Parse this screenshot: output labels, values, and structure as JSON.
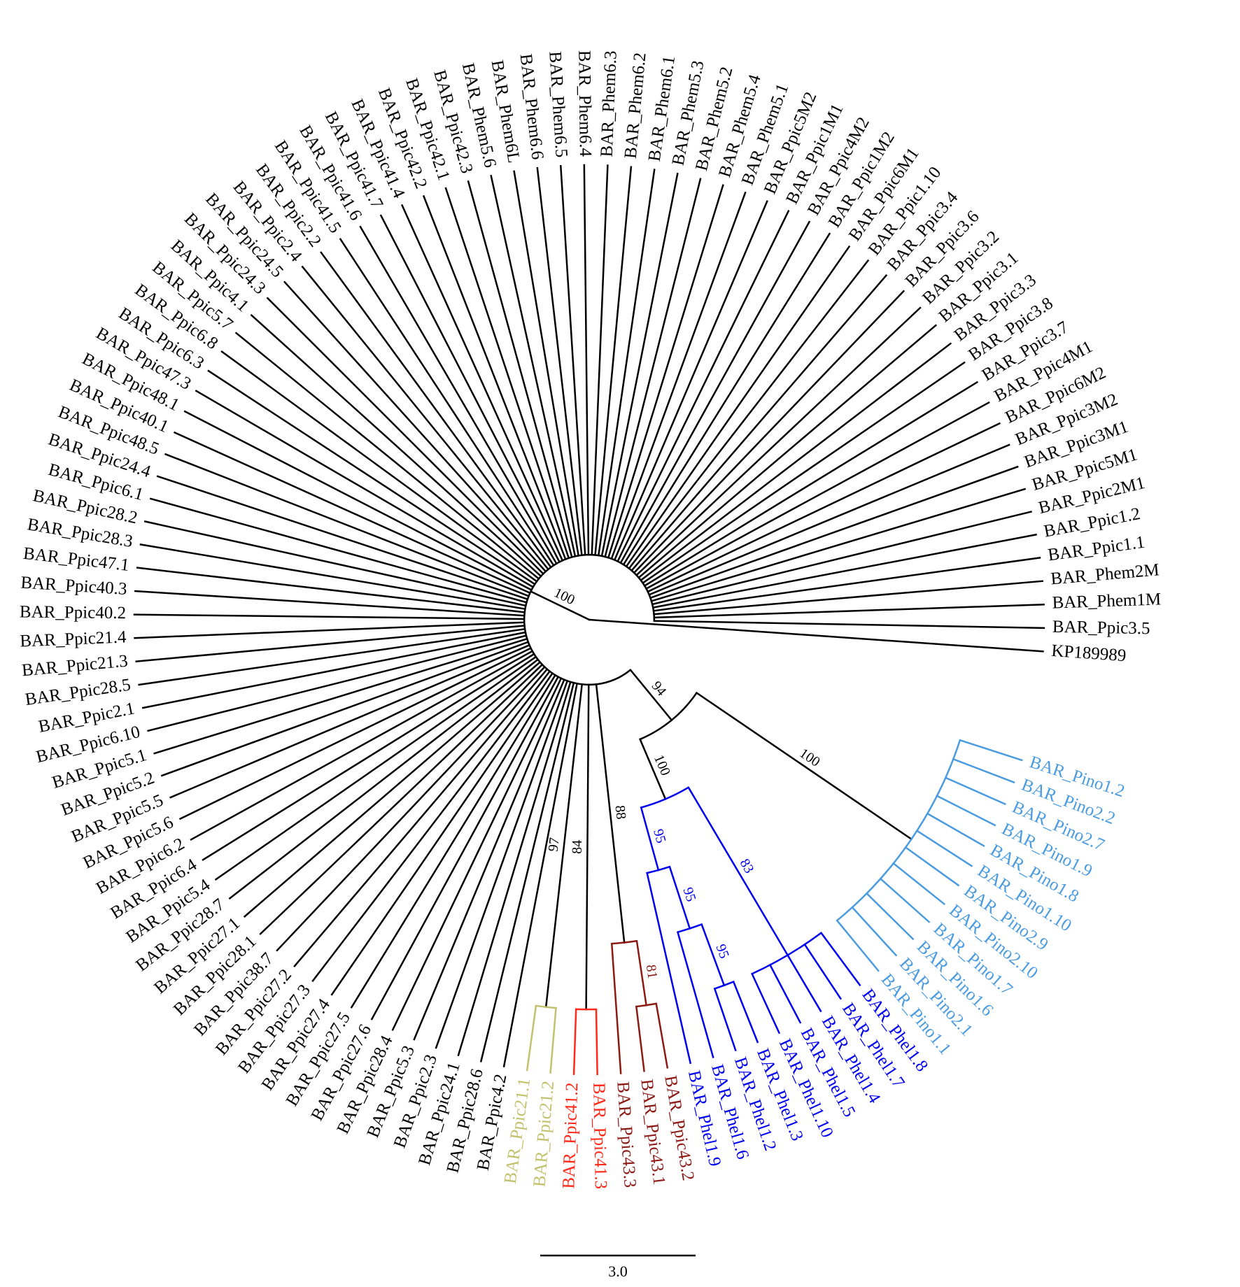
{
  "tree": {
    "color": "#000000",
    "children": [
      {
        "name": "KP189989",
        "color": "#000000"
      },
      {
        "support": 100,
        "color": "#000000",
        "children": [
          {
            "name": "BAR_Ppic3.5",
            "color": "#000000"
          },
          {
            "name": "BAR_Phem1M",
            "color": "#000000"
          },
          {
            "name": "BAR_Phem2M",
            "color": "#000000"
          },
          {
            "name": "BAR_Ppic1.1",
            "color": "#000000"
          },
          {
            "name": "BAR_Ppic1.2",
            "color": "#000000"
          },
          {
            "name": "BAR_Ppic2M1",
            "color": "#000000"
          },
          {
            "name": "BAR_Ppic5M1",
            "color": "#000000"
          },
          {
            "name": "BAR_Ppic3M1",
            "color": "#000000"
          },
          {
            "name": "BAR_Ppic3M2",
            "color": "#000000"
          },
          {
            "name": "BAR_Ppic6M2",
            "color": "#000000"
          },
          {
            "name": "BAR_Ppic4M1",
            "color": "#000000"
          },
          {
            "name": "BAR_Ppic3.7",
            "color": "#000000"
          },
          {
            "name": "BAR_Ppic3.8",
            "color": "#000000"
          },
          {
            "name": "BAR_Ppic3.3",
            "color": "#000000"
          },
          {
            "name": "BAR_Ppic3.1",
            "color": "#000000"
          },
          {
            "name": "BAR_Ppic3.2",
            "color": "#000000"
          },
          {
            "name": "BAR_Ppic3.6",
            "color": "#000000"
          },
          {
            "name": "BAR_Ppic3.4",
            "color": "#000000"
          },
          {
            "name": "BAR_Ppic1.10",
            "color": "#000000"
          },
          {
            "name": "BAR_Ppic6M1",
            "color": "#000000"
          },
          {
            "name": "BAR_Ppic1M2",
            "color": "#000000"
          },
          {
            "name": "BAR_Ppic4M2",
            "color": "#000000"
          },
          {
            "name": "BAR_Ppic1M1",
            "color": "#000000"
          },
          {
            "name": "BAR_Ppic5M2",
            "color": "#000000"
          },
          {
            "name": "BAR_Phem5.1",
            "color": "#000000"
          },
          {
            "name": "BAR_Phem5.4",
            "color": "#000000"
          },
          {
            "name": "BAR_Phem5.2",
            "color": "#000000"
          },
          {
            "name": "BAR_Phem5.3",
            "color": "#000000"
          },
          {
            "name": "BAR_Phem6.1",
            "color": "#000000"
          },
          {
            "name": "BAR_Phem6.2",
            "color": "#000000"
          },
          {
            "name": "BAR_Phem6.3",
            "color": "#000000"
          },
          {
            "name": "BAR_Phem6.4",
            "color": "#000000"
          },
          {
            "name": "BAR_Phem6.5",
            "color": "#000000"
          },
          {
            "name": "BAR_Phem6.6",
            "color": "#000000"
          },
          {
            "name": "BAR_Phem6L",
            "color": "#000000"
          },
          {
            "name": "BAR_Phem5.6",
            "color": "#000000"
          },
          {
            "name": "BAR_Ppic42.3",
            "color": "#000000"
          },
          {
            "name": "BAR_Ppic42.1",
            "color": "#000000"
          },
          {
            "name": "BAR_Ppic42.2",
            "color": "#000000"
          },
          {
            "name": "BAR_Ppic41.4",
            "color": "#000000"
          },
          {
            "name": "BAR_Ppic41.7",
            "color": "#000000"
          },
          {
            "name": "BAR_Ppic41.6",
            "color": "#000000"
          },
          {
            "name": "BAR_Ppic41.5",
            "color": "#000000"
          },
          {
            "name": "BAR_Ppic2.2",
            "color": "#000000"
          },
          {
            "name": "BAR_Ppic2.4",
            "color": "#000000"
          },
          {
            "name": "BAR_Ppic24.5",
            "color": "#000000"
          },
          {
            "name": "BAR_Ppic24.3",
            "color": "#000000"
          },
          {
            "name": "BAR_Ppic4.1",
            "color": "#000000"
          },
          {
            "name": "BAR_Ppic5.7",
            "color": "#000000"
          },
          {
            "name": "BAR_Ppic6.8",
            "color": "#000000"
          },
          {
            "name": "BAR_Ppic6.3",
            "color": "#000000"
          },
          {
            "name": "BAR_Ppic47.3",
            "color": "#000000"
          },
          {
            "name": "BAR_Ppic48.1",
            "color": "#000000"
          },
          {
            "name": "BAR_Ppic40.1",
            "color": "#000000"
          },
          {
            "name": "BAR_Ppic48.5",
            "color": "#000000"
          },
          {
            "name": "BAR_Ppic24.4",
            "color": "#000000"
          },
          {
            "name": "BAR_Ppic6.1",
            "color": "#000000"
          },
          {
            "name": "BAR_Ppic28.2",
            "color": "#000000"
          },
          {
            "name": "BAR_Ppic28.3",
            "color": "#000000"
          },
          {
            "name": "BAR_Ppic47.1",
            "color": "#000000"
          },
          {
            "name": "BAR_Ppic40.3",
            "color": "#000000"
          },
          {
            "name": "BAR_Ppic40.2",
            "color": "#000000"
          },
          {
            "name": "BAR_Ppic21.4",
            "color": "#000000"
          },
          {
            "name": "BAR_Ppic21.3",
            "color": "#000000"
          },
          {
            "name": "BAR_Ppic28.5",
            "color": "#000000"
          },
          {
            "name": "BAR_Ppic2.1",
            "color": "#000000"
          },
          {
            "name": "BAR_Ppic6.10",
            "color": "#000000"
          },
          {
            "name": "BAR_Ppic5.1",
            "color": "#000000"
          },
          {
            "name": "BAR_Ppic5.2",
            "color": "#000000"
          },
          {
            "name": "BAR_Ppic5.5",
            "color": "#000000"
          },
          {
            "name": "BAR_Ppic5.6",
            "color": "#000000"
          },
          {
            "name": "BAR_Ppic6.2",
            "color": "#000000"
          },
          {
            "name": "BAR_Ppic6.4",
            "color": "#000000"
          },
          {
            "name": "BAR_Ppic5.4",
            "color": "#000000"
          },
          {
            "name": "BAR_Ppic28.7",
            "color": "#000000"
          },
          {
            "name": "BAR_Ppic27.1",
            "color": "#000000"
          },
          {
            "name": "BAR_Ppic28.1",
            "color": "#000000"
          },
          {
            "name": "BAR_Ppic38.7",
            "color": "#000000"
          },
          {
            "name": "BAR_Ppic27.2",
            "color": "#000000"
          },
          {
            "name": "BAR_Ppic27.3",
            "color": "#000000"
          },
          {
            "name": "BAR_Ppic27.4",
            "color": "#000000"
          },
          {
            "name": "BAR_Ppic27.5",
            "color": "#000000"
          },
          {
            "name": "BAR_Ppic27.6",
            "color": "#000000"
          },
          {
            "name": "BAR_Ppic28.4",
            "color": "#000000"
          },
          {
            "name": "BAR_Ppic5.3",
            "color": "#000000"
          },
          {
            "name": "BAR_Ppic2.3",
            "color": "#000000"
          },
          {
            "name": "BAR_Ppic24.1",
            "color": "#000000"
          },
          {
            "name": "BAR_Ppic28.6",
            "color": "#000000"
          },
          {
            "name": "BAR_Ppic4.2",
            "color": "#000000"
          },
          {
            "support": 97,
            "color": "#c2c26e",
            "children": [
              {
                "name": "BAR_Ppic21.1",
                "color": "#c2c26e"
              },
              {
                "name": "BAR_Ppic21.2",
                "color": "#c2c26e"
              }
            ]
          },
          {
            "support": 84,
            "color": "#ff2a1a",
            "children": [
              {
                "name": "BAR_Ppic41.2",
                "color": "#ff2a1a"
              },
              {
                "name": "BAR_Ppic41.3",
                "color": "#ff2a1a"
              }
            ]
          },
          {
            "support": 88,
            "color": "#8b1a14",
            "children": [
              {
                "name": "BAR_Ppic43.3",
                "color": "#8b1a14"
              },
              {
                "support": 81,
                "color": "#8b1a14",
                "children": [
                  {
                    "name": "BAR_Ppic43.1",
                    "color": "#8b1a14"
                  },
                  {
                    "name": "BAR_Ppic43.2",
                    "color": "#8b1a14"
                  }
                ]
              }
            ]
          },
          {
            "support": 94,
            "color": "#000000",
            "children": [
              {
                "support": 100,
                "color": "#0000ee",
                "children": [
                  {
                    "support": 95,
                    "color": "#0000ee",
                    "children": [
                      {
                        "name": "BAR_Phel1.9",
                        "color": "#0000ee"
                      },
                      {
                        "support": 95,
                        "color": "#0000ee",
                        "children": [
                          {
                            "name": "BAR_Phel1.6",
                            "color": "#0000ee"
                          },
                          {
                            "support": 95,
                            "color": "#0000ee",
                            "children": [
                              {
                                "name": "BAR_Phel1.2",
                                "color": "#0000ee"
                              },
                              {
                                "name": "BAR_Phel1.3",
                                "color": "#0000ee"
                              }
                            ]
                          }
                        ]
                      }
                    ]
                  },
                  {
                    "support": 83,
                    "color": "#0000ee",
                    "children": [
                      {
                        "name": "BAR_Phel1.10",
                        "color": "#0000ee"
                      },
                      {
                        "name": "BAR_Phel1.5",
                        "color": "#0000ee"
                      },
                      {
                        "name": "BAR_Phel1.4",
                        "color": "#0000ee"
                      },
                      {
                        "name": "BAR_Phel1.7",
                        "color": "#0000ee"
                      },
                      {
                        "name": "BAR_Phel1.8",
                        "color": "#0000ee"
                      }
                    ]
                  }
                ]
              },
              {
                "support": 100,
                "color": "#4a9be0",
                "children": [
                  {
                    "name": "BAR_Pino1.1",
                    "color": "#4a9be0"
                  },
                  {
                    "name": "BAR_Pino2.1",
                    "color": "#4a9be0"
                  },
                  {
                    "name": "BAR_Pino1.6",
                    "color": "#4a9be0"
                  },
                  {
                    "name": "BAR_Pino1.7",
                    "color": "#4a9be0"
                  },
                  {
                    "name": "BAR_Pino2.10",
                    "color": "#4a9be0"
                  },
                  {
                    "name": "BAR_Pino2.9",
                    "color": "#4a9be0"
                  },
                  {
                    "name": "BAR_Pino1.10",
                    "color": "#4a9be0"
                  },
                  {
                    "name": "BAR_Pino1.8",
                    "color": "#4a9be0"
                  },
                  {
                    "name": "BAR_Pino1.9",
                    "color": "#4a9be0"
                  },
                  {
                    "name": "BAR_Pino2.7",
                    "color": "#4a9be0"
                  },
                  {
                    "name": "BAR_Pino2.2",
                    "color": "#4a9be0"
                  },
                  {
                    "name": "BAR_Pino1.2",
                    "color": "#4a9be0"
                  }
                ]
              }
            ]
          }
        ]
      }
    ]
  },
  "scale_bar": {
    "label": "3.0"
  }
}
